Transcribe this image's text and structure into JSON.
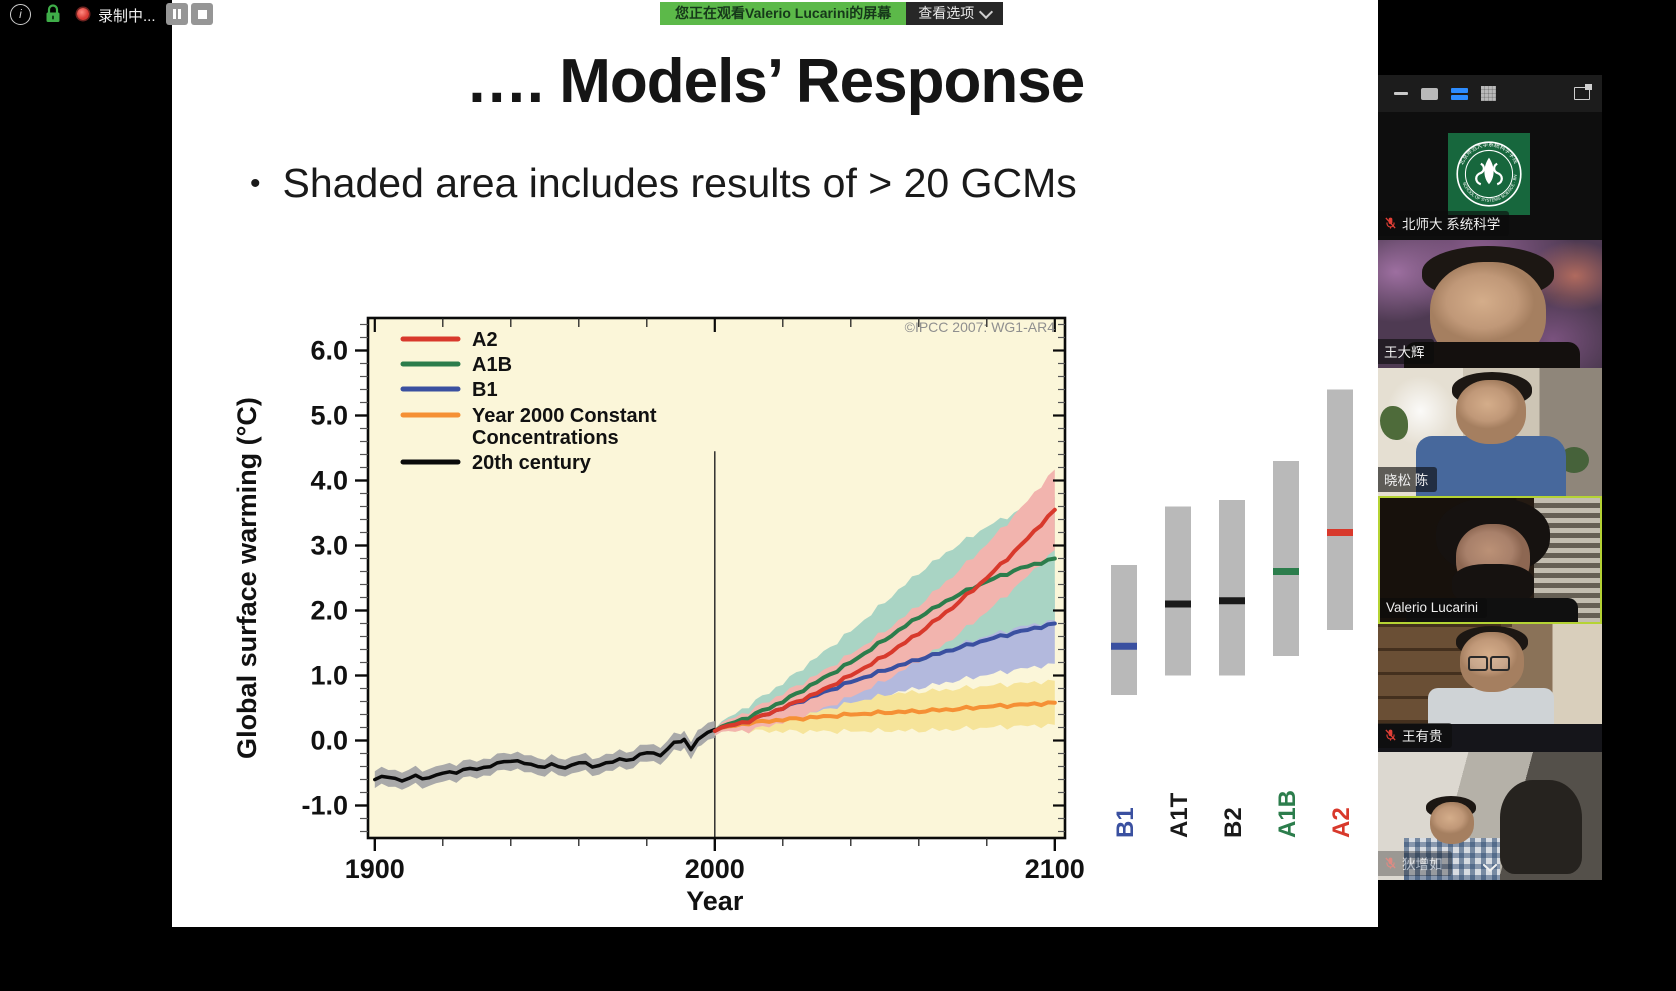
{
  "top_bar": {
    "recording_label": "录制中...",
    "status_icons": [
      "info-icon",
      "encryption-lock-icon",
      "recording-dot",
      "pause-button",
      "stop-button"
    ]
  },
  "banner": {
    "text": "您正在观看Valerio Lucarini的屏幕",
    "view_options_label": "查看选项"
  },
  "slide": {
    "title": "…. Models’ Response",
    "bullet_glyph": "•",
    "bullet_text": "Shaded area includes results of > 20 GCMs"
  },
  "chart_data": {
    "type": "line",
    "watermark": "©IPCC  2007: WG1-AR4",
    "xlabel": "Year",
    "ylabel": "Global surface warming (°C)",
    "xlim": [
      1898,
      2103
    ],
    "ylim": [
      -1.5,
      6.5
    ],
    "xticks": [
      1900,
      2000,
      2100
    ],
    "yticks": [
      -1.0,
      0.0,
      1.0,
      2.0,
      3.0,
      4.0,
      5.0,
      6.0
    ],
    "x_minor_step": 20,
    "y_minor_step": 0.2,
    "plot_bg": "#fbf6d9",
    "grid": false,
    "legend_position": "top-left",
    "legend": [
      {
        "label": "A2",
        "color": "#d8392c"
      },
      {
        "label": "A1B",
        "color": "#2c7d4c"
      },
      {
        "label": "B1",
        "color": "#3a50a0"
      },
      {
        "label": "Year 2000 Constant Concentrations",
        "lines": [
          "Year 2000 Constant",
          "Concentrations"
        ],
        "color": "#f59035"
      },
      {
        "label": "20th century",
        "color": "#0a0a0a"
      }
    ],
    "series": [
      {
        "name": "20th century",
        "color": "#0a0a0a",
        "band_color": "#a9a9a9",
        "x": [
          1900,
          1904,
          1908,
          1912,
          1916,
          1920,
          1924,
          1928,
          1932,
          1936,
          1940,
          1944,
          1948,
          1952,
          1956,
          1960,
          1964,
          1968,
          1972,
          1976,
          1980,
          1984,
          1988,
          1991,
          1993,
          1996,
          2000
        ],
        "y": [
          -0.6,
          -0.55,
          -0.62,
          -0.55,
          -0.58,
          -0.5,
          -0.48,
          -0.44,
          -0.42,
          -0.36,
          -0.3,
          -0.35,
          -0.4,
          -0.38,
          -0.42,
          -0.33,
          -0.4,
          -0.35,
          -0.3,
          -0.28,
          -0.18,
          -0.22,
          -0.05,
          0.02,
          -0.12,
          0.05,
          0.17
        ],
        "band_halfwidth": 0.13
      },
      {
        "name": "Year 2000 Constant Concentrations",
        "color": "#f59035",
        "band_color": "#f6e49a",
        "x": [
          2000,
          2010,
          2020,
          2030,
          2040,
          2050,
          2060,
          2070,
          2080,
          2090,
          2100
        ],
        "y": [
          0.17,
          0.27,
          0.32,
          0.36,
          0.4,
          0.43,
          0.45,
          0.48,
          0.52,
          0.55,
          0.58
        ],
        "band_halfwidth": [
          0.05,
          0.12,
          0.18,
          0.22,
          0.26,
          0.28,
          0.3,
          0.31,
          0.32,
          0.33,
          0.34
        ]
      },
      {
        "name": "B1",
        "color": "#3a50a0",
        "band_color": "#b3b9dd",
        "x": [
          2000,
          2010,
          2020,
          2030,
          2040,
          2050,
          2060,
          2070,
          2080,
          2090,
          2100
        ],
        "y": [
          0.17,
          0.3,
          0.5,
          0.7,
          0.9,
          1.08,
          1.25,
          1.4,
          1.55,
          1.68,
          1.8
        ],
        "band_halfwidth": [
          0.05,
          0.14,
          0.2,
          0.26,
          0.32,
          0.38,
          0.44,
          0.49,
          0.54,
          0.58,
          0.62
        ]
      },
      {
        "name": "A1B",
        "color": "#2c7d4c",
        "band_color": "#a9d4c4",
        "x": [
          2000,
          2010,
          2020,
          2030,
          2040,
          2050,
          2060,
          2070,
          2080,
          2090,
          2100
        ],
        "y": [
          0.17,
          0.36,
          0.6,
          0.9,
          1.2,
          1.55,
          1.9,
          2.2,
          2.45,
          2.65,
          2.8
        ],
        "band_halfwidth": [
          0.05,
          0.18,
          0.28,
          0.38,
          0.48,
          0.58,
          0.68,
          0.76,
          0.84,
          0.9,
          0.95
        ]
      },
      {
        "name": "A2",
        "color": "#d8392c",
        "band_color": "#f2b4ae",
        "x": [
          2000,
          2010,
          2020,
          2030,
          2040,
          2050,
          2060,
          2070,
          2080,
          2090,
          2100
        ],
        "y": [
          0.17,
          0.3,
          0.5,
          0.73,
          1.0,
          1.3,
          1.65,
          2.05,
          2.5,
          3.0,
          3.55
        ],
        "band_halfwidth": [
          0.05,
          0.15,
          0.22,
          0.28,
          0.33,
          0.38,
          0.43,
          0.48,
          0.52,
          0.57,
          0.62
        ]
      }
    ],
    "right_bars": [
      {
        "label": "B1",
        "color": "#3a50a0",
        "range": [
          0.7,
          2.7
        ],
        "best": 1.45
      },
      {
        "label": "A1T",
        "color": "#1a1a1a",
        "range": [
          1.0,
          3.6
        ],
        "best": 2.1
      },
      {
        "label": "B2",
        "color": "#1a1a1a",
        "range": [
          1.0,
          3.7
        ],
        "best": 2.15
      },
      {
        "label": "A1B",
        "color": "#2c7d4c",
        "range": [
          1.3,
          4.3
        ],
        "best": 2.6
      },
      {
        "label": "A2",
        "color": "#d8392c",
        "range": [
          1.7,
          5.4
        ],
        "best": 3.2
      }
    ],
    "vline_year": 2000
  },
  "panel": {
    "header_icons": [
      "minimize-icon",
      "speaker-view-icon",
      "strip-view-icon",
      "gallery-view-icon",
      "popout-icon"
    ],
    "active_view": "strip-view",
    "colors": {
      "active_view_blue": "#2d8cff",
      "active_speaker_border": "#b5d334",
      "muted_red": "#e23f36"
    },
    "logo_ring": {
      "top": "北京师范大学系统科学学院",
      "bottom": "SCHOOL OF SYSTEMS SCIENCE · BNU"
    },
    "participants": [
      {
        "name": "北师大 系统科学",
        "muted": true,
        "active": false,
        "scene": "logo",
        "faded": false
      },
      {
        "name": "王大辉",
        "muted": false,
        "active": false,
        "scene": "blossom",
        "faded": false
      },
      {
        "name": "晓松 陈",
        "muted": false,
        "active": false,
        "scene": "office",
        "faded": false
      },
      {
        "name": "Valerio Lucarini",
        "muted": false,
        "active": true,
        "scene": "blinds",
        "faded": false
      },
      {
        "name": "王有贵",
        "muted": true,
        "active": false,
        "scene": "bookshelf",
        "faded": false
      },
      {
        "name": "狄增如",
        "muted": true,
        "active": false,
        "scene": "office2",
        "faded": true
      }
    ]
  }
}
